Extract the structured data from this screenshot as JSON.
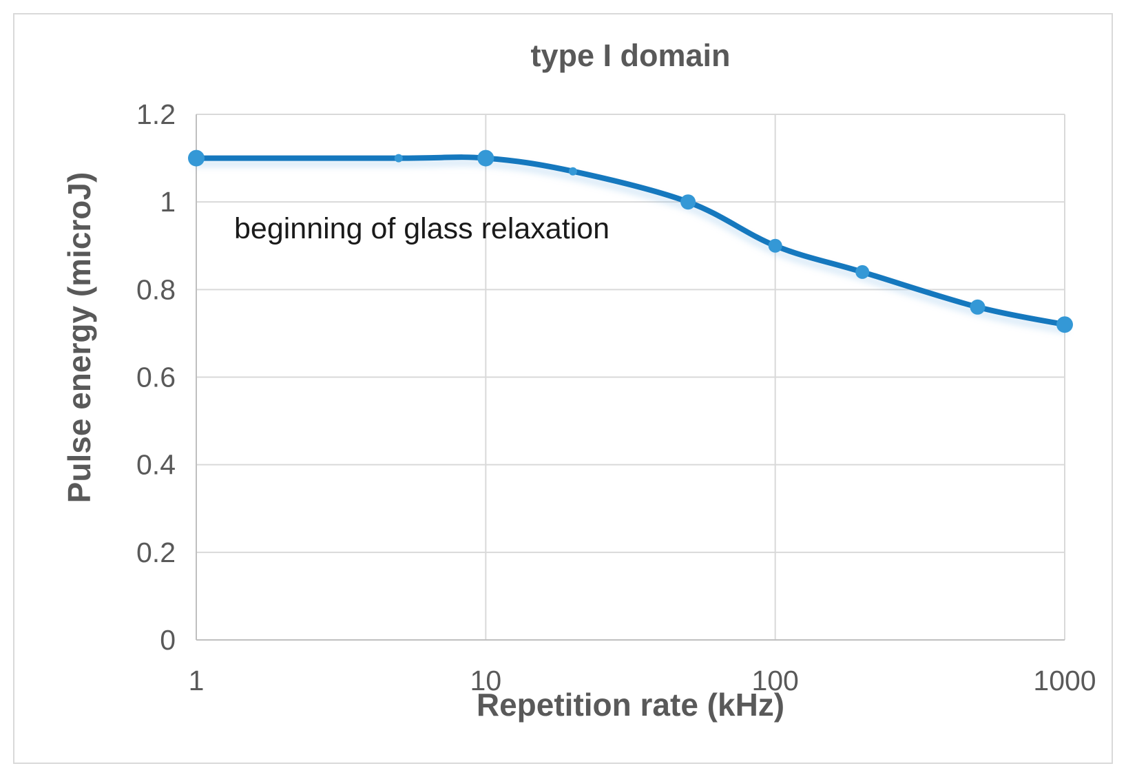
{
  "figure": {
    "title": "type I domain",
    "annotation_text": "beginning of glass relaxation"
  },
  "colors": {
    "line": "#1578be",
    "marker": "#3498d6",
    "grid": "#d9d9d9",
    "axis": "#bfbfbf",
    "tick_text": "#595959",
    "title_text": "#595959",
    "annotation_text": "#1a1a1a",
    "figure_border": "#d9d9d9"
  },
  "chart_data": {
    "type": "line",
    "title": "type I domain",
    "xlabel": "Repetition rate (kHz)",
    "ylabel": "Pulse energy (microJ)",
    "x_scale": "log",
    "xlim": [
      1,
      1000
    ],
    "ylim": [
      0,
      1.2
    ],
    "x_ticks": [
      1,
      10,
      100,
      1000
    ],
    "x_tick_labels": [
      "1",
      "10",
      "100",
      "1000"
    ],
    "y_ticks": [
      0,
      0.2,
      0.4,
      0.6,
      0.8,
      1.0,
      1.2
    ],
    "y_tick_labels": [
      "0",
      "0.2",
      "0.4",
      "0.6",
      "0.8",
      "1",
      "1.2"
    ],
    "grid": true,
    "legend": false,
    "annotation": {
      "text": "beginning of glass relaxation",
      "x": 2.6,
      "y": 0.92
    },
    "series": [
      {
        "name": "pulse energy",
        "x": [
          1,
          5,
          10,
          20,
          50,
          100,
          200,
          500,
          1000
        ],
        "y": [
          1.1,
          1.1,
          1.1,
          1.07,
          1.0,
          0.9,
          0.84,
          0.76,
          0.72
        ],
        "marker_radius": [
          12,
          6,
          12,
          6,
          11,
          10,
          10,
          11,
          12
        ],
        "line_width": 8
      }
    ]
  }
}
